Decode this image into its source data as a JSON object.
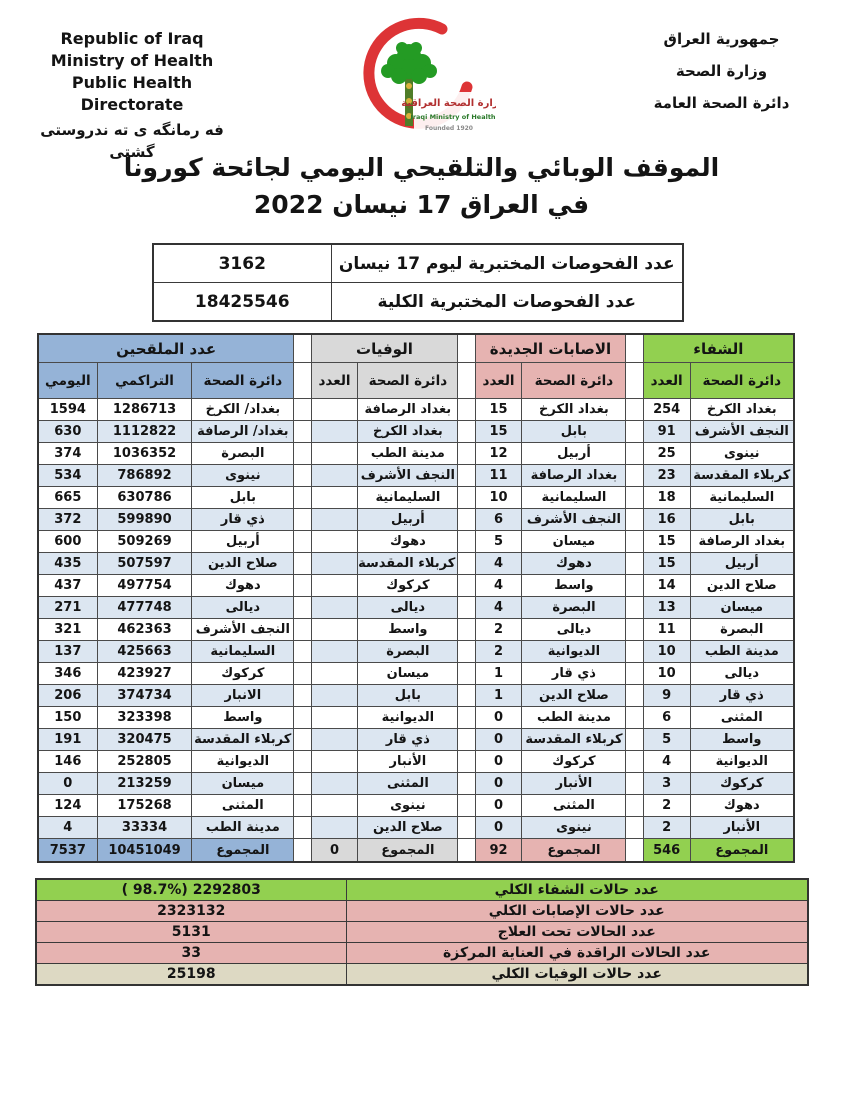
{
  "colors": {
    "recovery": "#92d050",
    "infections": "#e6b3b1",
    "deaths": "#d9d9d9",
    "vaccinated": "#95b3d7",
    "row_alt": "#dce6f1",
    "summary_deaths": "#ddd9c3"
  },
  "header": {
    "english": [
      "Republic of Iraq",
      "Ministry of Health",
      "Public Health Directorate"
    ],
    "kurdish": "فه رمانگه ی ته ندروستی گشتی",
    "arabic": [
      "جمهورية العراق",
      "وزارة الصحة",
      "دائرة الصحة العامة"
    ],
    "logo": {
      "line1": "وزارة الصحة العراقية",
      "line2": "Iraqi Ministry of Health",
      "line3": "Founded 1920"
    }
  },
  "title": {
    "line1": "الموقف الوبائي والتلقيحي اليومي لجائحة كورونا",
    "line2": "في العراق  17 نيسان  2022"
  },
  "tests": {
    "rows": [
      {
        "label": "عدد الفحوصات المختبرية  ليوم 17  نيسان",
        "value": "3162"
      },
      {
        "label": "عدد الفحوصات المختبرية الكلية",
        "value": "18425546"
      }
    ]
  },
  "main_table": {
    "col_headers": {
      "directorate": "دائرة الصحة",
      "count": "العدد",
      "cumulative": "التراكمي",
      "daily": "اليومي"
    },
    "recovery": {
      "title": "الشفاء",
      "total_label": "المجموع",
      "total": "546",
      "rows": [
        {
          "name": "بغداد الكرخ",
          "count": "254"
        },
        {
          "name": "النجف الأشرف",
          "count": "91"
        },
        {
          "name": "نينوى",
          "count": "25"
        },
        {
          "name": "كربلاء المقدسة",
          "count": "23"
        },
        {
          "name": "السليمانية",
          "count": "18"
        },
        {
          "name": "بابل",
          "count": "16"
        },
        {
          "name": "بغداد الرصافة",
          "count": "15"
        },
        {
          "name": "أربيل",
          "count": "15"
        },
        {
          "name": "صلاح الدين",
          "count": "14"
        },
        {
          "name": "ميسان",
          "count": "13"
        },
        {
          "name": "البصرة",
          "count": "11"
        },
        {
          "name": "مدينة الطب",
          "count": "10"
        },
        {
          "name": "ديالى",
          "count": "10"
        },
        {
          "name": "ذي قار",
          "count": "9"
        },
        {
          "name": "المثنى",
          "count": "6"
        },
        {
          "name": "واسط",
          "count": "5"
        },
        {
          "name": "الديوانية",
          "count": "4"
        },
        {
          "name": "كركوك",
          "count": "3"
        },
        {
          "name": "دهوك",
          "count": "2"
        },
        {
          "name": "الأنبار",
          "count": "2"
        }
      ]
    },
    "infections": {
      "title": "الاصابات الجديدة",
      "total_label": "المجموع",
      "total": "92",
      "rows": [
        {
          "name": "بغداد الكرخ",
          "count": "15"
        },
        {
          "name": "بابل",
          "count": "15"
        },
        {
          "name": "أربيل",
          "count": "12"
        },
        {
          "name": "بغداد الرصافة",
          "count": "11"
        },
        {
          "name": "السليمانية",
          "count": "10"
        },
        {
          "name": "النجف الأشرف",
          "count": "6"
        },
        {
          "name": "ميسان",
          "count": "5"
        },
        {
          "name": "دهوك",
          "count": "4"
        },
        {
          "name": "واسط",
          "count": "4"
        },
        {
          "name": "البصرة",
          "count": "4"
        },
        {
          "name": "ديالى",
          "count": "2"
        },
        {
          "name": "الديوانية",
          "count": "2"
        },
        {
          "name": "ذي قار",
          "count": "1"
        },
        {
          "name": "صلاح الدين",
          "count": "1"
        },
        {
          "name": "مدينة الطب",
          "count": "0"
        },
        {
          "name": "كربلاء المقدسة",
          "count": "0"
        },
        {
          "name": "كركوك",
          "count": "0"
        },
        {
          "name": "الأنبار",
          "count": "0"
        },
        {
          "name": "المثنى",
          "count": "0"
        },
        {
          "name": "نينوى",
          "count": "0"
        }
      ]
    },
    "deaths": {
      "title": "الوفيات",
      "total_label": "المجموع",
      "total": "0",
      "rows": [
        {
          "name": "بغداد الرصافة",
          "count": ""
        },
        {
          "name": "بغداد الكرخ",
          "count": ""
        },
        {
          "name": "مدينة الطب",
          "count": ""
        },
        {
          "name": "النجف الأشرف",
          "count": ""
        },
        {
          "name": "السليمانية",
          "count": ""
        },
        {
          "name": "أربيل",
          "count": ""
        },
        {
          "name": "دهوك",
          "count": ""
        },
        {
          "name": "كربلاء المقدسة",
          "count": ""
        },
        {
          "name": "كركوك",
          "count": ""
        },
        {
          "name": "ديالى",
          "count": ""
        },
        {
          "name": "واسط",
          "count": ""
        },
        {
          "name": "البصرة",
          "count": ""
        },
        {
          "name": "ميسان",
          "count": ""
        },
        {
          "name": "بابل",
          "count": ""
        },
        {
          "name": "الديوانية",
          "count": ""
        },
        {
          "name": "ذي قار",
          "count": ""
        },
        {
          "name": "الأنبار",
          "count": ""
        },
        {
          "name": "المثنى",
          "count": ""
        },
        {
          "name": "نينوى",
          "count": ""
        },
        {
          "name": "صلاح الدين",
          "count": ""
        }
      ]
    },
    "vaccinated": {
      "title": "عدد الملقحين",
      "total_label": "المجموع",
      "total_cumulative": "10451049",
      "total_daily": "7537",
      "rows": [
        {
          "name": "بغداد/ الكرخ",
          "cumulative": "1286713",
          "daily": "1594"
        },
        {
          "name": "بغداد/ الرصافة",
          "cumulative": "1112822",
          "daily": "630"
        },
        {
          "name": "البصرة",
          "cumulative": "1036352",
          "daily": "374"
        },
        {
          "name": "نينوى",
          "cumulative": "786892",
          "daily": "534"
        },
        {
          "name": "بابل",
          "cumulative": "630786",
          "daily": "665"
        },
        {
          "name": "ذي قار",
          "cumulative": "599890",
          "daily": "372"
        },
        {
          "name": "أربيل",
          "cumulative": "509269",
          "daily": "600"
        },
        {
          "name": "صلاح الدين",
          "cumulative": "507597",
          "daily": "435"
        },
        {
          "name": "دهوك",
          "cumulative": "497754",
          "daily": "437"
        },
        {
          "name": "ديالى",
          "cumulative": "477748",
          "daily": "271"
        },
        {
          "name": "النجف الأشرف",
          "cumulative": "462363",
          "daily": "321"
        },
        {
          "name": "السليمانية",
          "cumulative": "425663",
          "daily": "137"
        },
        {
          "name": "كركوك",
          "cumulative": "423927",
          "daily": "346"
        },
        {
          "name": "الانبار",
          "cumulative": "374734",
          "daily": "206"
        },
        {
          "name": "واسط",
          "cumulative": "323398",
          "daily": "150"
        },
        {
          "name": "كربلاء المقدسة",
          "cumulative": "320475",
          "daily": "191"
        },
        {
          "name": "الديوانية",
          "cumulative": "252805",
          "daily": "146"
        },
        {
          "name": "ميسان",
          "cumulative": "213259",
          "daily": "0"
        },
        {
          "name": "المثنى",
          "cumulative": "175268",
          "daily": "124"
        },
        {
          "name": "مدينة الطب",
          "cumulative": "33334",
          "daily": "4"
        }
      ]
    }
  },
  "summary": {
    "rows": [
      {
        "label": "عدد حالات الشفاء الكلي",
        "value": "( 98.7%)  2292803",
        "color": "green"
      },
      {
        "label": "عدد حالات الإصابات الكلي",
        "value": "2323132",
        "color": "pink"
      },
      {
        "label": "عدد الحالات تحت العلاج",
        "value": "5131",
        "color": "pink"
      },
      {
        "label": "عدد الحالات الراقدة في العناية المركزة",
        "value": "33",
        "color": "pink"
      },
      {
        "label": "عدد حالات الوفيات الكلي",
        "value": "25198",
        "color": "beige"
      }
    ]
  }
}
